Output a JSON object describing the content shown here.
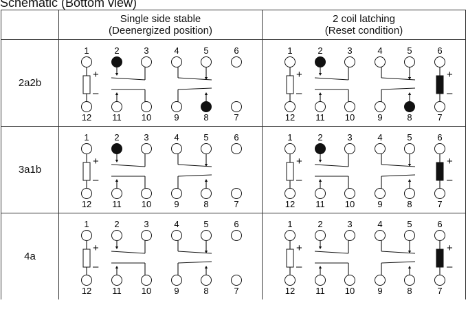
{
  "page_title": "Schematic (Bottom view)",
  "columns": {
    "single": {
      "line1": "Single side stable",
      "line2": "(Deenergized position)"
    },
    "latching": {
      "line1": "2 coil latching",
      "line2": "(Reset condition)"
    }
  },
  "rows": [
    {
      "label": "2a2b",
      "type": "2a2b"
    },
    {
      "label": "3a1b",
      "type": "3a1b"
    },
    {
      "label": "4a",
      "type": "4a"
    }
  ],
  "diagram_labels": {
    "top": [
      "1",
      "2",
      "3",
      "4",
      "5",
      "6"
    ],
    "bottom": [
      "12",
      "11",
      "10",
      "9",
      "8",
      "7"
    ],
    "plus": "+",
    "minus": "–"
  }
}
